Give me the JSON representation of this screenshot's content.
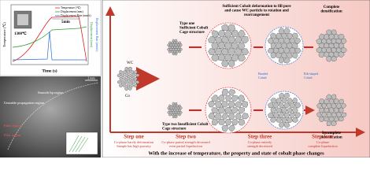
{
  "chart_panel": {
    "legend": [
      "Temperature (℃)",
      "Displacement (mm)",
      "Displacement Rate (mm/s)"
    ],
    "annotations": [
      "1300℃",
      "5min"
    ],
    "x_label": "Time (s)",
    "y_label": "Temperature (℃)",
    "y2_label": "Displacement (mm)",
    "y3_label": "Displacement Rate (mm/s)"
  },
  "sem_panel": {
    "scale": "2 mm",
    "regions": [
      "Smooth lip region",
      "Unstable propagation region",
      "Fiber region",
      "Pilot region"
    ]
  },
  "diagram": {
    "wc": "WC",
    "co": "Co",
    "headline": [
      "Sufficient Cobalt deformation to fill pore",
      "and cause WC particle to rotation and",
      "rearrangement"
    ],
    "complete": [
      "Complete",
      "densification"
    ],
    "incomplete": [
      "Incomplete",
      "densification"
    ],
    "type_one": [
      "Type one",
      "Sufficient Cobalt",
      "Cage structure"
    ],
    "type_two": [
      "Type two Insufficient Cobalt",
      "Cage structure"
    ],
    "banded": [
      "Banded",
      "Cobalt"
    ],
    "rib": [
      "Rib-shaped",
      "Cobalt"
    ],
    "steps": [
      {
        "name": "Step one",
        "desc": [
          "Co-phase barely deformation",
          "Sample has high porosity"
        ]
      },
      {
        "name": "Step two",
        "desc": [
          "Co-phase partial strength decreased",
          "even partial liquefaction"
        ]
      },
      {
        "name": "Step three",
        "desc": [
          "Co-phase entirely",
          "strength decreased"
        ]
      },
      {
        "name": "Step four",
        "desc": [
          "Co-phase",
          "complete liquefaction"
        ]
      }
    ],
    "caption": "With the increase of temperature, the property and state of cobalt phase changes"
  }
}
